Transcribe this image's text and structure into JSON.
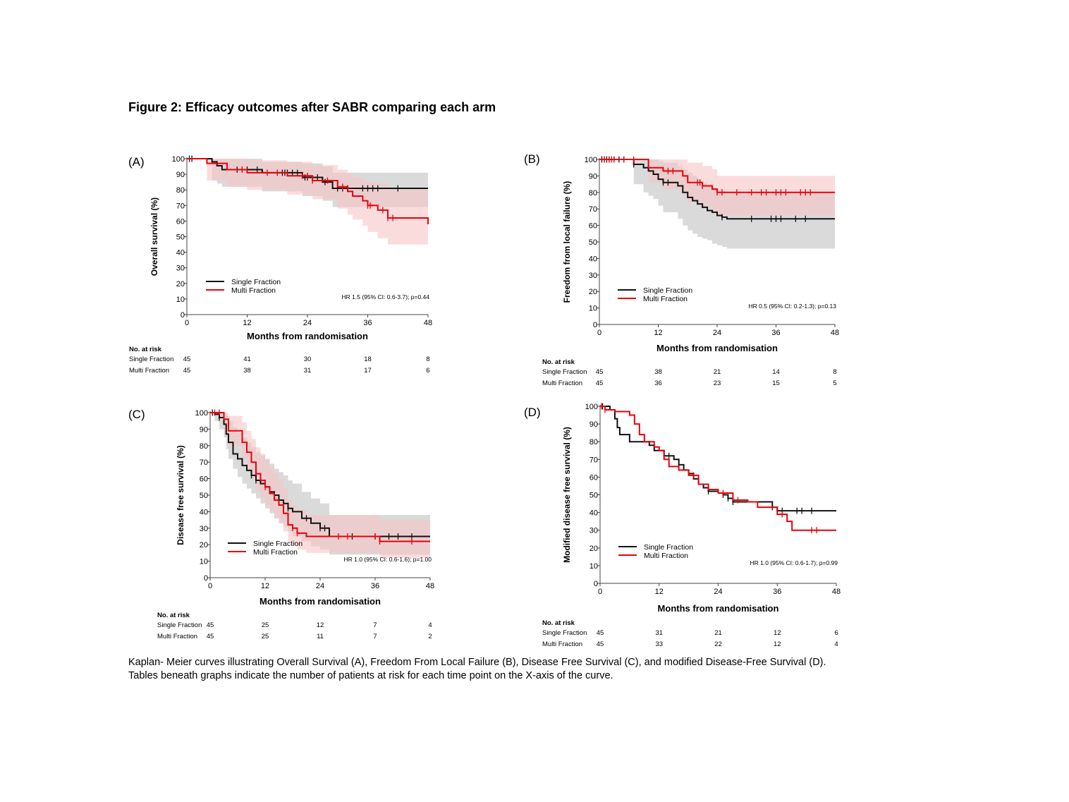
{
  "figure_title": "Figure 2: Efficacy outcomes after SABR comparing  each arm",
  "caption": [
    "Kaplan- Meier curves illustrating Overall Survival (A), Freedom From Local Failure (B), Disease Free Survival (C), and modified Disease-Free Survival (D).",
    "Tables beneath graphs indicate the number of patients at risk for each time point on the X-axis of the curve."
  ],
  "colors": {
    "single": "#111111",
    "multi": "#e8000b",
    "single_ci": "#d3d3d3",
    "multi_ci": "#f9c4c4"
  },
  "risk_header": "No. at risk",
  "chart_data": [
    {
      "panel": "(A)",
      "type": "line",
      "xlabel": "Months from randomisation",
      "ylabel": "Overall survival (%)",
      "xlim": [
        0,
        48
      ],
      "ylim": [
        0,
        100
      ],
      "xticks": [
        0,
        12,
        24,
        36,
        48
      ],
      "yticks": [
        0,
        10,
        20,
        30,
        40,
        50,
        60,
        70,
        80,
        90,
        100
      ],
      "annotation": "HR 1.5 (95% CI: 0.6-3.7); p=0.44",
      "legend": [
        "Single Fraction",
        "Multi Fraction"
      ],
      "series": [
        {
          "name": "Single Fraction",
          "color": "#111111",
          "x": [
            0,
            5,
            6,
            7,
            15,
            23,
            27,
            29,
            48
          ],
          "y": [
            100,
            98,
            95.5,
            93,
            91,
            88,
            85,
            81,
            81
          ],
          "ci_low": [
            100,
            86,
            84,
            82,
            79,
            76,
            73,
            69,
            69
          ],
          "ci_high": [
            100,
            100,
            100,
            100,
            98,
            97,
            95,
            91,
            91
          ],
          "censor": [
            0.5,
            1,
            10,
            12,
            14,
            19,
            19.5,
            20,
            21,
            22,
            23.5,
            24,
            26,
            27.5,
            30,
            31,
            32,
            35,
            36,
            37,
            38,
            42
          ]
        },
        {
          "name": "Multi Fraction",
          "color": "#e8000b",
          "x": [
            0,
            4,
            8,
            12,
            20,
            25,
            30,
            32,
            33,
            35,
            36,
            38,
            40,
            48
          ],
          "y": [
            100,
            97,
            93,
            91,
            89,
            86,
            82,
            79,
            76,
            73,
            70,
            67,
            62,
            58
          ],
          "ci_low": [
            100,
            86,
            82,
            80,
            77,
            74,
            68,
            64,
            61,
            57,
            53,
            49,
            45,
            37
          ],
          "ci_high": [
            100,
            100,
            100,
            99,
            98,
            96,
            93,
            91,
            88,
            86,
            85,
            84,
            80,
            74
          ],
          "censor": [
            11,
            16,
            18,
            23,
            24,
            25,
            28,
            31,
            36,
            36.5,
            39,
            40,
            41
          ]
        }
      ],
      "risk": {
        "times": [
          0,
          12,
          24,
          36,
          48
        ],
        "rows": [
          {
            "label": "Single Fraction",
            "values": [
              45,
              41,
              30,
              18,
              8
            ]
          },
          {
            "label": "Multi Fraction",
            "values": [
              45,
              38,
              31,
              17,
              6
            ]
          }
        ]
      }
    },
    {
      "panel": "(B)",
      "type": "line",
      "xlabel": "Months from randomisation",
      "ylabel": "Freedom from local failure (%)",
      "xlim": [
        0,
        48
      ],
      "ylim": [
        0,
        100
      ],
      "xticks": [
        0,
        12,
        24,
        36,
        48
      ],
      "yticks": [
        0,
        10,
        20,
        30,
        40,
        50,
        60,
        70,
        80,
        90,
        100
      ],
      "annotation": "HR 0.5 (95% CI: 0.2-1.3); p=0.13",
      "legend": [
        "Single Fraction",
        "Multi Fraction"
      ],
      "series": [
        {
          "name": "Single Fraction",
          "color": "#111111",
          "x": [
            0,
            7,
            9,
            10,
            11,
            12,
            13,
            16,
            17,
            18,
            19,
            20,
            21,
            22,
            23,
            24,
            25,
            26,
            48
          ],
          "y": [
            100,
            97,
            95,
            93,
            91,
            88,
            86,
            84,
            80,
            77,
            75,
            73,
            71,
            69,
            68,
            66,
            65,
            64,
            64
          ],
          "ci_low": [
            100,
            85,
            80,
            78,
            76,
            72,
            68,
            64,
            60,
            57,
            55,
            53,
            52,
            51,
            49,
            48,
            47,
            46,
            46
          ],
          "ci_high": [
            100,
            100,
            100,
            100,
            100,
            99,
            98,
            96,
            94,
            92,
            90,
            88,
            86,
            84,
            83,
            82,
            81,
            80,
            80
          ],
          "censor": [
            0.5,
            1,
            1.5,
            2,
            3,
            4,
            5,
            7,
            13,
            14,
            25,
            31,
            35,
            36,
            37,
            40,
            42
          ]
        },
        {
          "name": "Multi Fraction",
          "color": "#e8000b",
          "x": [
            0,
            10,
            13,
            17,
            18,
            21,
            23,
            24,
            48
          ],
          "y": [
            100,
            95,
            93,
            90,
            86,
            84,
            82,
            80,
            80
          ],
          "ci_low": [
            100,
            86,
            82,
            78,
            74,
            71,
            68,
            66,
            66
          ],
          "ci_high": [
            100,
            100,
            100,
            100,
            98,
            96,
            94,
            90,
            90
          ],
          "censor": [
            1,
            2,
            2.5,
            3,
            5,
            7,
            14,
            15,
            20,
            20.5,
            21,
            24,
            25,
            28,
            31,
            33,
            34,
            36,
            37,
            38,
            41,
            42,
            43
          ]
        }
      ],
      "risk": {
        "times": [
          0,
          12,
          24,
          36,
          48
        ],
        "rows": [
          {
            "label": "Single Fraction",
            "values": [
              45,
              38,
              21,
              14,
              8
            ]
          },
          {
            "label": "Multi Fraction",
            "values": [
              45,
              36,
              23,
              15,
              5
            ]
          }
        ]
      }
    },
    {
      "panel": "(C)",
      "type": "line",
      "xlabel": "Months from randomisation",
      "ylabel": "Disease free survival (%)",
      "xlim": [
        0,
        48
      ],
      "ylim": [
        0,
        100
      ],
      "xticks": [
        0,
        12,
        24,
        36,
        48
      ],
      "yticks": [
        0,
        10,
        20,
        30,
        40,
        50,
        60,
        70,
        80,
        90,
        100
      ],
      "annotation": "HR 1.0 (95% CI: 0.6-1.6); p=1.00",
      "legend": [
        "Single Fraction",
        "Multi Fraction"
      ],
      "series": [
        {
          "name": "Single Fraction",
          "color": "#111111",
          "x": [
            0,
            1,
            2,
            3,
            3.5,
            4,
            5,
            6,
            7,
            8,
            9,
            10,
            11,
            12,
            13,
            14,
            15,
            16,
            17,
            18,
            20,
            22,
            24,
            26,
            48
          ],
          "y": [
            100,
            99,
            97,
            93,
            87,
            82,
            75,
            72,
            68,
            65,
            62,
            59,
            57,
            55,
            52,
            50,
            47,
            45,
            42,
            40,
            36,
            33,
            30,
            25,
            25
          ],
          "ci_low": [
            100,
            95,
            90,
            85,
            78,
            72,
            66,
            61,
            57,
            54,
            51,
            48,
            45,
            42,
            39,
            36,
            33,
            31,
            28,
            25,
            22,
            19,
            17,
            14,
            14
          ],
          "ci_high": [
            100,
            100,
            100,
            100,
            98,
            95,
            91,
            88,
            85,
            82,
            79,
            76,
            74,
            72,
            69,
            66,
            64,
            62,
            59,
            57,
            52,
            48,
            45,
            38,
            38
          ],
          "censor": [
            0.5,
            2,
            9,
            10,
            17,
            21,
            24,
            25,
            31,
            36,
            39,
            41,
            44
          ]
        },
        {
          "name": "Multi Fraction",
          "color": "#e8000b",
          "x": [
            0,
            3,
            4,
            7,
            8,
            9,
            10,
            11,
            12,
            13,
            14,
            15,
            16,
            17,
            18,
            19,
            21,
            22,
            24,
            36,
            37,
            48
          ],
          "y": [
            100,
            96,
            89,
            82,
            76,
            70,
            63,
            59,
            55,
            51,
            47,
            44,
            39,
            32,
            30,
            27,
            25,
            25,
            25,
            25,
            22,
            22
          ],
          "ci_low": [
            100,
            88,
            80,
            72,
            65,
            59,
            52,
            48,
            44,
            40,
            36,
            33,
            28,
            22,
            20,
            17,
            15,
            15,
            15,
            15,
            12,
            12
          ],
          "ci_high": [
            100,
            100,
            98,
            94,
            89,
            84,
            79,
            75,
            71,
            67,
            63,
            59,
            54,
            47,
            44,
            41,
            38,
            38,
            38,
            38,
            35,
            35
          ],
          "censor": [
            1,
            2,
            12,
            18,
            19,
            28,
            30,
            36,
            37,
            44
          ]
        }
      ],
      "risk": {
        "times": [
          0,
          12,
          24,
          36,
          48
        ],
        "rows": [
          {
            "label": "Single Fraction",
            "values": [
              45,
              25,
              12,
              7,
              4
            ]
          },
          {
            "label": "Multi Fraction",
            "values": [
              45,
              25,
              11,
              7,
              2
            ]
          }
        ]
      }
    },
    {
      "panel": "(D)",
      "type": "line",
      "xlabel": "Months from randomisation",
      "ylabel": "Modified disease free survival (%)",
      "xlim": [
        0,
        48
      ],
      "ylim": [
        0,
        100
      ],
      "xticks": [
        0,
        12,
        24,
        36,
        48
      ],
      "yticks": [
        0,
        10,
        20,
        30,
        40,
        50,
        60,
        70,
        80,
        90,
        100
      ],
      "annotation": "HR 1.0 (95% CI: 0.6-1.7); p=0.99",
      "legend": [
        "Single Fraction",
        "Multi Fraction"
      ],
      "series": [
        {
          "name": "Single Fraction",
          "color": "#111111",
          "x": [
            0,
            2,
            3,
            3.5,
            4,
            6,
            9,
            10,
            11,
            13,
            15,
            16,
            17,
            18,
            19,
            20,
            21,
            22,
            23,
            24,
            25,
            26,
            27,
            28,
            30,
            35,
            36,
            37,
            38,
            48
          ],
          "y": [
            100,
            98,
            93,
            88,
            84,
            80,
            80,
            78,
            75,
            72,
            70,
            67,
            64,
            62,
            59,
            56,
            54,
            52,
            52,
            51,
            50,
            48,
            46,
            46,
            46,
            43,
            41,
            41,
            41,
            41
          ],
          "censor": [
            0.5,
            14,
            16,
            22,
            25,
            26,
            27,
            35,
            36,
            37,
            40,
            41,
            43
          ]
        },
        {
          "name": "Multi Fraction",
          "color": "#e8000b",
          "x": [
            0,
            1,
            3,
            6,
            7,
            8,
            9,
            11,
            12,
            13,
            14,
            16,
            18,
            20,
            22,
            24,
            27,
            30,
            32,
            36,
            37,
            38,
            39,
            48
          ],
          "y": [
            100,
            98,
            97,
            95,
            90,
            84,
            80,
            77,
            75,
            70,
            66,
            64,
            61,
            56,
            53,
            51,
            47,
            46,
            43,
            39,
            39,
            35,
            30,
            30
          ],
          "censor": [
            0.3,
            1,
            19,
            25,
            28,
            37,
            43,
            44
          ]
        }
      ],
      "risk": {
        "times": [
          0,
          12,
          24,
          36,
          48
        ],
        "rows": [
          {
            "label": "Single Fraction",
            "values": [
              45,
              31,
              21,
              12,
              6
            ]
          },
          {
            "label": "Multi Fraction",
            "values": [
              45,
              33,
              22,
              12,
              4
            ]
          }
        ]
      }
    }
  ]
}
